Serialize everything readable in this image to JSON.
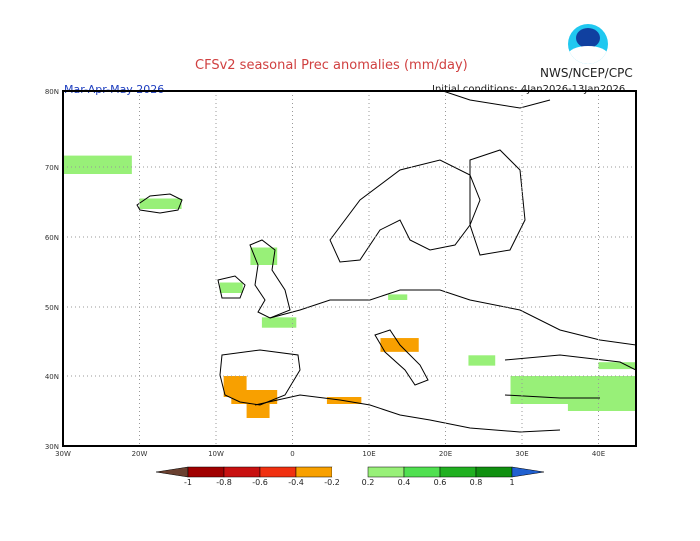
{
  "header": {
    "title": "CFSv2 seasonal Prec anomalies (mm/day)",
    "agency": "NWS/NCEP/CPC",
    "season": "Mar-Apr-May 2026",
    "initial_conditions": "Initial conditions: 4Jan2026-13Jan2026",
    "logo": "NOAA"
  },
  "map": {
    "lon_range": [
      -30,
      45
    ],
    "lat_range": [
      30,
      80
    ],
    "lat_labels": [
      {
        "lat": 80,
        "label": "80N"
      },
      {
        "lat": 70,
        "label": "70N"
      },
      {
        "lat": 60,
        "label": "60N"
      },
      {
        "lat": 50,
        "label": "50N"
      },
      {
        "lat": 40,
        "label": "40N"
      },
      {
        "lat": 30,
        "label": "30N"
      }
    ],
    "lon_labels": [
      {
        "lon": -30,
        "label": "30W"
      },
      {
        "lon": -20,
        "label": "20W"
      },
      {
        "lon": -10,
        "label": "10W"
      },
      {
        "lon": 0,
        "label": "0"
      },
      {
        "lon": 10,
        "label": "10E"
      },
      {
        "lon": 20,
        "label": "20E"
      },
      {
        "lon": 30,
        "label": "30E"
      },
      {
        "lon": 40,
        "label": "40E"
      }
    ],
    "gridlines": true,
    "anomalies": [
      {
        "lon": [
          -9,
          -6
        ],
        "lat": [
          37,
          40
        ],
        "value": -0.3
      },
      {
        "lon": [
          -8,
          -2
        ],
        "lat": [
          36,
          38
        ],
        "value": -0.3
      },
      {
        "lon": [
          -6,
          -3
        ],
        "lat": [
          34,
          36
        ],
        "value": -0.3
      },
      {
        "lon": [
          4.5,
          9
        ],
        "lat": [
          36,
          37
        ],
        "value": -0.3
      },
      {
        "lon": [
          11.5,
          16.5
        ],
        "lat": [
          43.5,
          45.5
        ],
        "value": -0.3
      },
      {
        "lon": [
          -20,
          -14.5
        ],
        "lat": [
          64,
          65.5
        ],
        "value": 0.3
      },
      {
        "lon": [
          -30,
          -21
        ],
        "lat": [
          69,
          71.5
        ],
        "value": 0.3
      },
      {
        "lon": [
          -5.5,
          -2
        ],
        "lat": [
          56,
          58.5
        ],
        "value": 0.3
      },
      {
        "lon": [
          -9.5,
          -6.5
        ],
        "lat": [
          52,
          53.5
        ],
        "value": 0.3
      },
      {
        "lon": [
          -4,
          0.5
        ],
        "lat": [
          47,
          48.5
        ],
        "value": 0.3
      },
      {
        "lon": [
          12.5,
          15
        ],
        "lat": [
          51,
          51.8
        ],
        "value": 0.3
      },
      {
        "lon": [
          23,
          26.5
        ],
        "lat": [
          41.5,
          43
        ],
        "value": 0.3
      },
      {
        "lon": [
          28.5,
          45
        ],
        "lat": [
          36,
          40
        ],
        "value": 0.3
      },
      {
        "lon": [
          36,
          45
        ],
        "lat": [
          35,
          37
        ],
        "value": 0.3
      },
      {
        "lon": [
          40,
          45
        ],
        "lat": [
          41,
          42
        ],
        "value": 0.3
      }
    ]
  },
  "legend": {
    "labels": [
      "-1",
      "-0.8",
      "-0.6",
      "-0.4",
      "-0.2",
      "0.2",
      "0.4",
      "0.6",
      "0.8",
      "1"
    ],
    "colors": {
      "below_-1": "#6a4030",
      "-1": "#a00000",
      "-0.8": "#c81010",
      "-0.6": "#f03010",
      "-0.4": "#f8a000",
      "neutral": "#ffffff",
      "0.2": "#98f078",
      "0.4": "#50e050",
      "0.6": "#20b020",
      "0.8": "#109010",
      "above_1": "#2060d0"
    }
  }
}
